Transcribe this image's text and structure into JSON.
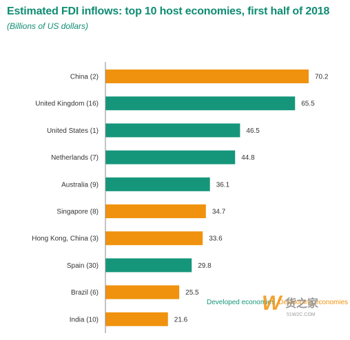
{
  "chart_data": {
    "type": "bar",
    "orientation": "horizontal",
    "title": "Estimated FDI inflows: top 10 host economies, first half of 2018",
    "subtitle": "(Billions of US dollars)",
    "categories": [
      "China (2)",
      "United Kingdom (16)",
      "United States (1)",
      "Netherlands (7)",
      "Australia (9)",
      "Singapore (8)",
      "Hong Kong, China (3)",
      "Spain (30)",
      "Brazil (6)",
      "India (10)"
    ],
    "values": [
      70.2,
      65.5,
      46.5,
      44.8,
      36.1,
      34.7,
      33.6,
      29.8,
      25.5,
      21.6
    ],
    "value_labels": [
      "70.2",
      "65.5",
      "46.5",
      "44.8",
      "36.1",
      "34.7",
      "33.6",
      "29.8",
      "25.5",
      "21.6"
    ],
    "groups": [
      "developing",
      "developed",
      "developed",
      "developed",
      "developed",
      "developing",
      "developing",
      "developed",
      "developing",
      "developing"
    ],
    "legend": {
      "position": "bottom-right",
      "items": [
        {
          "key": "developed",
          "label": "Developed economies",
          "color": "#15967a"
        },
        {
          "key": "developing",
          "label": "Developing economies",
          "color": "#f0920e"
        }
      ]
    },
    "xlim": [
      0,
      75
    ],
    "grid": false
  },
  "watermark": {
    "text": "货之家",
    "url": "51W2C.COM"
  }
}
